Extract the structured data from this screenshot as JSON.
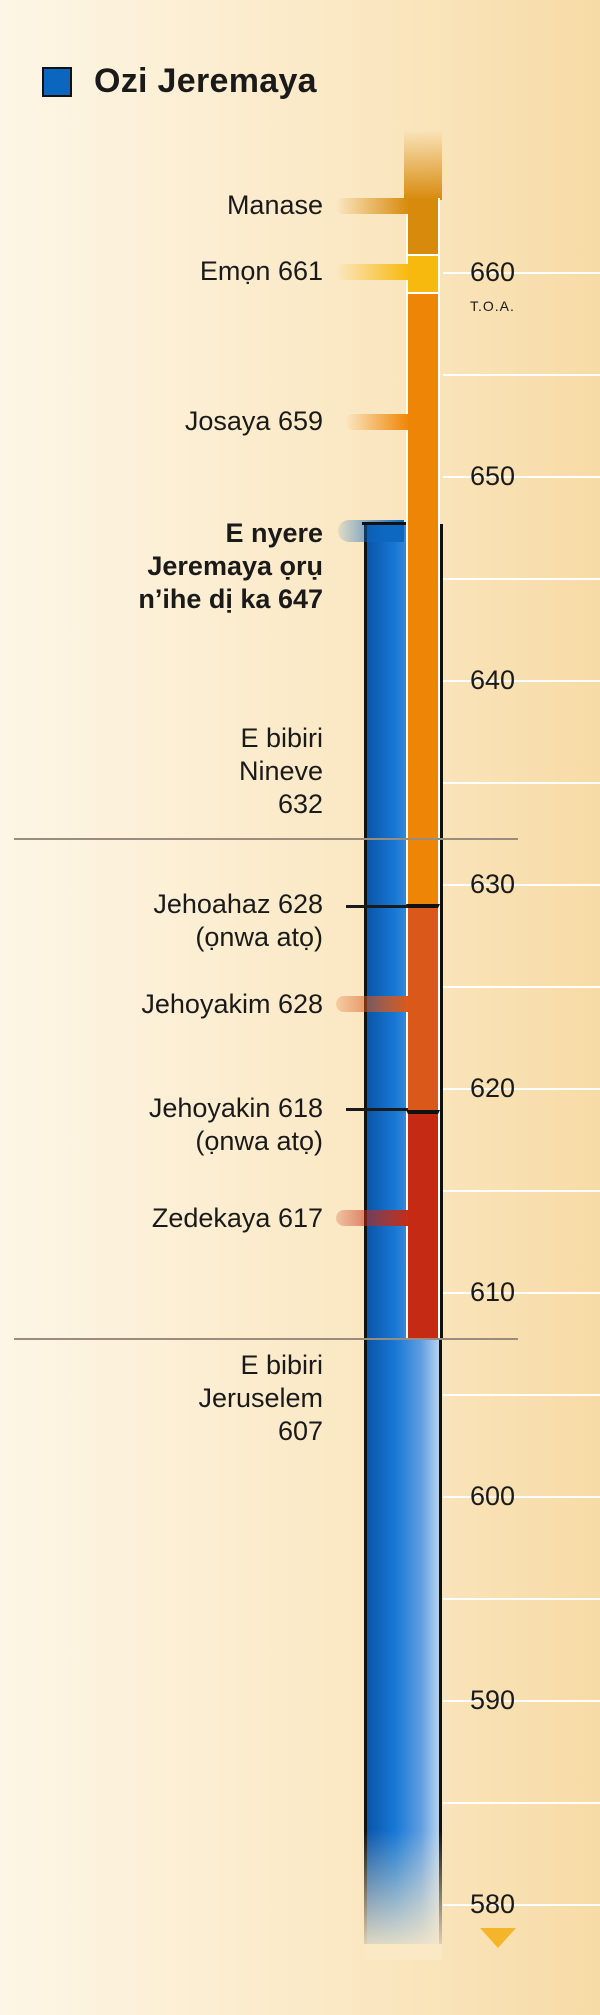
{
  "legend": {
    "label": "Ozi Jeremaya",
    "color": "#0b66bf"
  },
  "axis": {
    "era": "T.O.A.",
    "ticks": [
      {
        "value": 660,
        "label": "660"
      },
      {
        "value": 650,
        "label": "650"
      },
      {
        "value": 640,
        "label": "640"
      },
      {
        "value": 630,
        "label": "630"
      },
      {
        "value": 620,
        "label": "620"
      },
      {
        "value": 610,
        "label": "610"
      },
      {
        "value": 600,
        "label": "600"
      },
      {
        "value": 590,
        "label": "590"
      },
      {
        "value": 580,
        "label": "580"
      }
    ]
  },
  "labels": {
    "manase": "Manase",
    "emon": "Emọn 661",
    "josaya": "Josaya 659",
    "jeremaya_line1": "E nyere",
    "jeremaya_line2": "Jeremaya ọrụ",
    "jeremaya_line3": "n’ihe dị ka 647",
    "nineve_line1": "E bibiri",
    "nineve_line2": "Nineve",
    "nineve_line3": "632",
    "jehoahaz_line1": "Jehoahaz 628",
    "jehoahaz_line2": "(ọnwa atọ)",
    "jehoyakim": "Jehoyakim 628",
    "jehoyakin_line1": "Jehoyakin 618",
    "jehoyakin_line2": "(ọnwa atọ)",
    "zedekaya": "Zedekaya 617",
    "jerusalem_line1": "E bibiri",
    "jerusalem_line2": "Jeruselem",
    "jerusalem_line3": "607"
  },
  "colors": {
    "manase": "#d88a0c",
    "emon": "#f8b90e",
    "josaya": "#ef8506",
    "jehoyakim": "#d9581a",
    "zedekaya": "#c42a14",
    "jeremaya": "#0b66bf"
  }
}
